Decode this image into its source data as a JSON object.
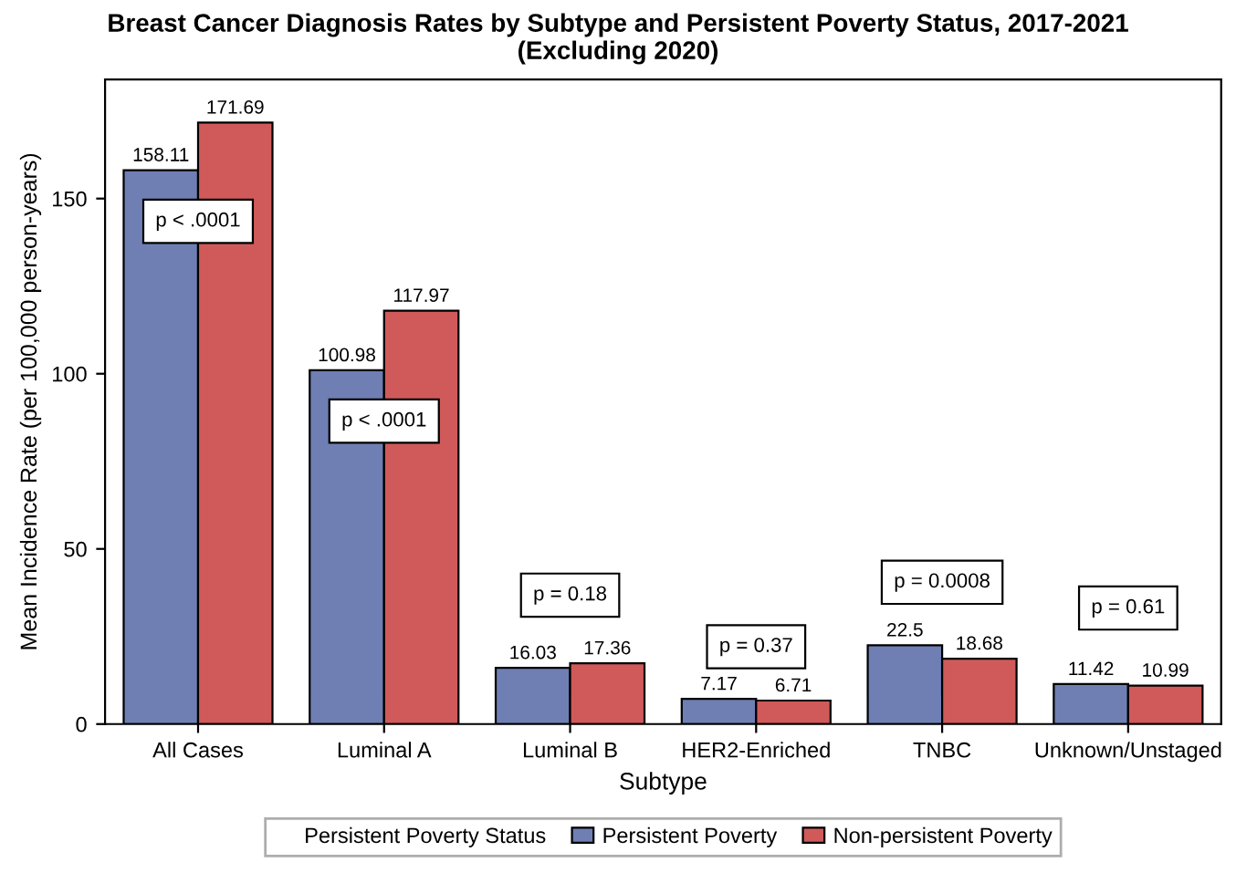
{
  "chart_data": {
    "type": "bar",
    "title": "Breast Cancer Diagnosis Rates by Subtype and Persistent Poverty Status, 2017-2021\n(Excluding 2020)",
    "xlabel": "Subtype",
    "ylabel": "Mean Incidence Rate (per 100,000 person-years)",
    "categories": [
      "All Cases",
      "Luminal A",
      "Luminal B",
      "HER2-Enriched",
      "TNBC",
      "Unknown/Unstaged"
    ],
    "series": [
      {
        "name": "Persistent Poverty",
        "color": "#6f7fb4",
        "values": [
          158.11,
          100.98,
          16.03,
          7.17,
          22.5,
          11.42
        ]
      },
      {
        "name": "Non-persistent Poverty",
        "color": "#d05a5a",
        "values": [
          171.69,
          117.97,
          17.36,
          6.71,
          18.68,
          10.99
        ]
      }
    ],
    "ylim": [
      0,
      184
    ],
    "yticks": [
      0,
      50,
      100,
      150
    ],
    "grid": false,
    "data_labels": true,
    "legend": "bottom",
    "legend_title": "Persistent Poverty Status",
    "annotations": [
      "p < .0001",
      "p < .0001",
      "p = 0.18",
      "p = 0.37",
      "p = 0.0008",
      "p = 0.61"
    ]
  }
}
